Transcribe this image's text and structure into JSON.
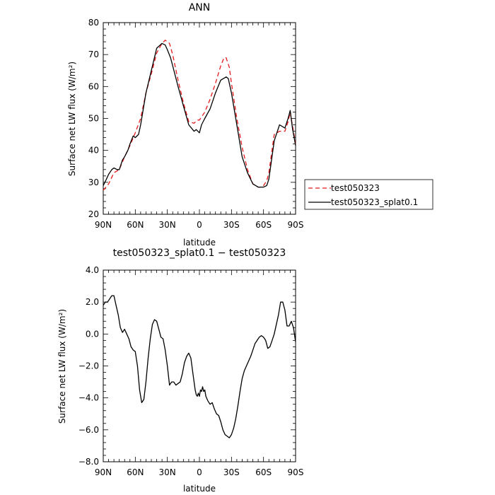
{
  "chart_data": [
    {
      "type": "line",
      "title": "ANN",
      "xlabel": "latitude",
      "ylabel": "Surface net LW flux (W/m²)",
      "xlim": [
        90,
        -90
      ],
      "ylim": [
        20,
        80
      ],
      "x_ticks": [
        {
          "value": 90,
          "label": "90N"
        },
        {
          "value": 60,
          "label": "60N"
        },
        {
          "value": 30,
          "label": "30N"
        },
        {
          "value": 0,
          "label": "0"
        },
        {
          "value": -30,
          "label": "30S"
        },
        {
          "value": -60,
          "label": "60S"
        },
        {
          "value": -90,
          "label": "90S"
        }
      ],
      "y_ticks": [
        {
          "value": 20,
          "label": "20"
        },
        {
          "value": 30,
          "label": "30"
        },
        {
          "value": 40,
          "label": "40"
        },
        {
          "value": 50,
          "label": "50"
        },
        {
          "value": 60,
          "label": "60"
        },
        {
          "value": 70,
          "label": "70"
        },
        {
          "value": 80,
          "label": "80"
        }
      ],
      "legend_position": "right, outside plot",
      "series": [
        {
          "name": "test050323",
          "color": "#e41a1c",
          "dash": "dashed",
          "x": [
            90,
            85,
            80,
            75,
            70,
            65,
            60,
            55,
            50,
            45,
            40,
            35,
            32,
            28,
            25,
            20,
            15,
            10,
            5,
            2,
            0,
            -5,
            -10,
            -15,
            -20,
            -23,
            -25,
            -28,
            -30,
            -35,
            -40,
            -45,
            -50,
            -55,
            -57,
            -60,
            -63,
            -65,
            -70,
            -75,
            -80,
            -83,
            -85,
            -88,
            -90
          ],
          "y": [
            27.5,
            29.5,
            33,
            34,
            38,
            41.5,
            45.5,
            50,
            58,
            64,
            70.5,
            73.5,
            74.5,
            73.5,
            70,
            62,
            55,
            49,
            48.5,
            49.5,
            49.5,
            52,
            56,
            61,
            66.5,
            69,
            69,
            66,
            61,
            50,
            41,
            34,
            29.5,
            28.5,
            28.5,
            29,
            30.5,
            33,
            45,
            46,
            46,
            49,
            52,
            46,
            42
          ]
        },
        {
          "name": "test050323_splat0.1",
          "color": "#000000",
          "dash": "solid",
          "x": [
            90,
            87,
            85,
            82,
            80,
            77,
            75,
            72,
            70,
            67,
            65,
            62,
            60,
            57,
            55,
            50,
            45,
            40,
            35,
            32,
            30,
            27,
            25,
            20,
            15,
            10,
            5,
            3,
            0,
            -2,
            -5,
            -10,
            -15,
            -20,
            -25,
            -27,
            -30,
            -35,
            -40,
            -45,
            -50,
            -55,
            -60,
            -63,
            -65,
            -70,
            -75,
            -80,
            -83,
            -85,
            -87,
            -90
          ],
          "y": [
            29,
            31,
            32.5,
            34,
            34.5,
            34,
            34,
            37,
            38,
            40,
            42,
            44.5,
            44,
            45,
            48,
            58,
            65,
            72,
            73.5,
            73,
            71.5,
            69,
            66.5,
            60,
            54,
            48,
            46,
            46.5,
            45.5,
            48,
            50,
            53,
            58,
            62,
            63,
            62.5,
            58,
            48,
            38,
            33,
            29.5,
            28.5,
            28.5,
            29,
            31,
            43,
            48,
            47,
            50,
            52.5,
            47,
            41.5
          ]
        }
      ]
    },
    {
      "type": "line",
      "title": "test050323_splat0.1 − test050323",
      "xlabel": "latitude",
      "ylabel": "Surface net LW flux (W/m²)",
      "xlim": [
        90,
        -90
      ],
      "ylim": [
        -8,
        4
      ],
      "x_ticks": [
        {
          "value": 90,
          "label": "90N"
        },
        {
          "value": 60,
          "label": "60N"
        },
        {
          "value": 30,
          "label": "30N"
        },
        {
          "value": 0,
          "label": "0"
        },
        {
          "value": -30,
          "label": "30S"
        },
        {
          "value": -60,
          "label": "60S"
        },
        {
          "value": -90,
          "label": "90S"
        }
      ],
      "y_ticks": [
        {
          "value": -8,
          "label": "−8.0"
        },
        {
          "value": -6,
          "label": "−6.0"
        },
        {
          "value": -4,
          "label": "−4.0"
        },
        {
          "value": -2,
          "label": "−2.0"
        },
        {
          "value": 0,
          "label": "0.0"
        },
        {
          "value": 2,
          "label": "2.0"
        },
        {
          "value": 4,
          "label": "4.0"
        }
      ],
      "series": [
        {
          "color": "#000000",
          "dash": "solid",
          "x": [
            90,
            88,
            86,
            84,
            82,
            80,
            78,
            76,
            74,
            72,
            70,
            68,
            66,
            64,
            62,
            60,
            58,
            56,
            54,
            52,
            50,
            48,
            46,
            44,
            42,
            40,
            38,
            36,
            34,
            32,
            30,
            28,
            26,
            24,
            22,
            20,
            18,
            16,
            14,
            12,
            10,
            8,
            6,
            4,
            3,
            2,
            1,
            0,
            -1,
            -2,
            -3,
            -4,
            -5,
            -6,
            -8,
            -10,
            -12,
            -14,
            -16,
            -18,
            -20,
            -22,
            -24,
            -26,
            -28,
            -30,
            -32,
            -34,
            -36,
            -38,
            -40,
            -42,
            -44,
            -46,
            -48,
            -50,
            -52,
            -54,
            -56,
            -58,
            -60,
            -62,
            -64,
            -66,
            -68,
            -70,
            -72,
            -74,
            -76,
            -78,
            -80,
            -82,
            -84,
            -86,
            -88,
            -90
          ],
          "y": [
            1.8,
            2.0,
            2.0,
            2.2,
            2.4,
            2.4,
            1.8,
            1.2,
            0.4,
            0.1,
            0.3,
            0.0,
            -0.3,
            -0.8,
            -1.0,
            -1.1,
            -2.0,
            -3.5,
            -4.3,
            -4.1,
            -3.0,
            -1.5,
            -0.3,
            0.6,
            0.9,
            0.8,
            0.3,
            -0.2,
            -0.3,
            -1.0,
            -2.0,
            -3.2,
            -3.0,
            -3.0,
            -3.2,
            -3.1,
            -3.0,
            -2.5,
            -1.8,
            -1.4,
            -1.2,
            -1.5,
            -2.5,
            -3.5,
            -3.8,
            -3.9,
            -3.7,
            -3.9,
            -3.5,
            -3.6,
            -3.3,
            -3.6,
            -3.5,
            -3.9,
            -4.2,
            -4.4,
            -4.3,
            -4.7,
            -5.0,
            -5.1,
            -5.5,
            -6.0,
            -6.3,
            -6.4,
            -6.5,
            -6.3,
            -5.9,
            -5.3,
            -4.5,
            -3.6,
            -2.8,
            -2.3,
            -2.0,
            -1.7,
            -1.4,
            -1.0,
            -0.6,
            -0.4,
            -0.2,
            -0.1,
            -0.2,
            -0.4,
            -0.9,
            -0.8,
            -0.4,
            0.0,
            0.6,
            1.2,
            2.0,
            2.0,
            1.5,
            0.5,
            0.5,
            0.8,
            0.4,
            -0.5
          ]
        }
      ]
    }
  ]
}
